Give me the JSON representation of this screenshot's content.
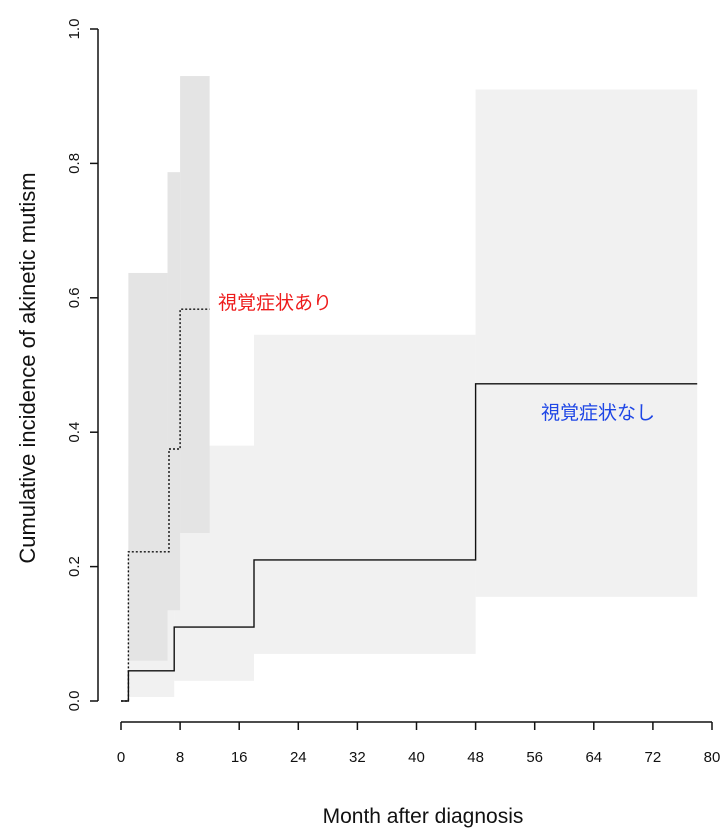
{
  "chart_data": {
    "type": "line",
    "xlabel": "Month after diagnosis",
    "ylabel": "Cumulative incidence of akinetic mutism",
    "xlim": [
      0,
      80
    ],
    "ylim": [
      0,
      1.0
    ],
    "x_ticks": [
      "0",
      "8",
      "16",
      "24",
      "32",
      "40",
      "48",
      "56",
      "64",
      "72",
      "80"
    ],
    "y_ticks": [
      "0.0",
      "0.2",
      "0.4",
      "0.6",
      "0.8",
      "1.0"
    ],
    "grid": false,
    "step": true,
    "series": [
      {
        "name": "視覚症状あり",
        "line_style": "dotted",
        "label_color": "#ee1c1c",
        "points": [
          [
            0,
            0.0
          ],
          [
            1,
            0.0
          ],
          [
            1,
            0.222
          ],
          [
            6.5,
            0.222
          ],
          [
            6.5,
            0.375
          ],
          [
            8,
            0.375
          ],
          [
            8,
            0.583
          ],
          [
            12,
            0.583
          ]
        ],
        "ci": [
          {
            "x0": 1,
            "x1": 6.3,
            "lo": 0.06,
            "hi": 0.637
          },
          {
            "x0": 6.3,
            "x1": 8,
            "lo": 0.135,
            "hi": 0.787
          },
          {
            "x0": 8,
            "x1": 12,
            "lo": 0.25,
            "hi": 0.93
          }
        ]
      },
      {
        "name": "視覚症状なし",
        "line_style": "solid",
        "label_color": "#1e46e6",
        "points": [
          [
            0,
            0.0
          ],
          [
            1,
            0.0
          ],
          [
            1,
            0.045
          ],
          [
            7.2,
            0.045
          ],
          [
            7.2,
            0.11
          ],
          [
            18,
            0.11
          ],
          [
            18,
            0.21
          ],
          [
            48,
            0.21
          ],
          [
            48,
            0.472
          ],
          [
            78,
            0.472
          ]
        ],
        "ci": [
          {
            "x0": 1,
            "x1": 7.2,
            "lo": 0.006,
            "hi": 0.35
          },
          {
            "x0": 7.2,
            "x1": 18,
            "lo": 0.03,
            "hi": 0.38
          },
          {
            "x0": 18,
            "x1": 48,
            "lo": 0.07,
            "hi": 0.545
          },
          {
            "x0": 48,
            "x1": 78,
            "lo": 0.155,
            "hi": 0.91
          }
        ]
      }
    ]
  }
}
